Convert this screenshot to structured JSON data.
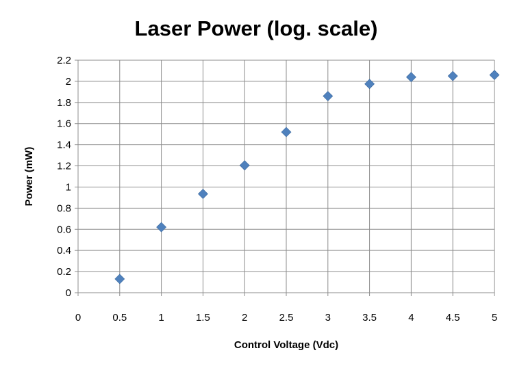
{
  "chart_data": {
    "type": "scatter",
    "title": "Laser Power (log. scale)",
    "xlabel": "Control Voltage (Vdc)",
    "ylabel": "Power (mW)",
    "xlim": [
      0,
      5
    ],
    "ylim": [
      0,
      2.2
    ],
    "xticks": [
      0,
      0.5,
      1,
      1.5,
      2,
      2.5,
      3,
      3.5,
      4,
      4.5,
      5
    ],
    "xtick_labels": [
      "0",
      "0.5",
      "1",
      "1.5",
      "2",
      "2.5",
      "3",
      "3.5",
      "4",
      "4.5",
      "5"
    ],
    "yticks": [
      0,
      0.2,
      0.4,
      0.6,
      0.8,
      1,
      1.2,
      1.4,
      1.6,
      1.8,
      2,
      2.2
    ],
    "ytick_labels": [
      "0",
      "0.2",
      "0.4",
      "0.6",
      "0.8",
      "1",
      "1.2",
      "1.4",
      "1.6",
      "1.8",
      "2",
      "2.2"
    ],
    "grid": true,
    "legend": false,
    "marker": "diamond",
    "marker_color": "#4f81bd",
    "series": [
      {
        "x": [
          0.5,
          1,
          1.5,
          2,
          2.5,
          3,
          3.5,
          4,
          4.5,
          5
        ],
        "y": [
          0.13,
          0.62,
          0.935,
          1.205,
          1.52,
          1.86,
          1.975,
          2.04,
          2.05,
          2.06
        ]
      }
    ]
  }
}
